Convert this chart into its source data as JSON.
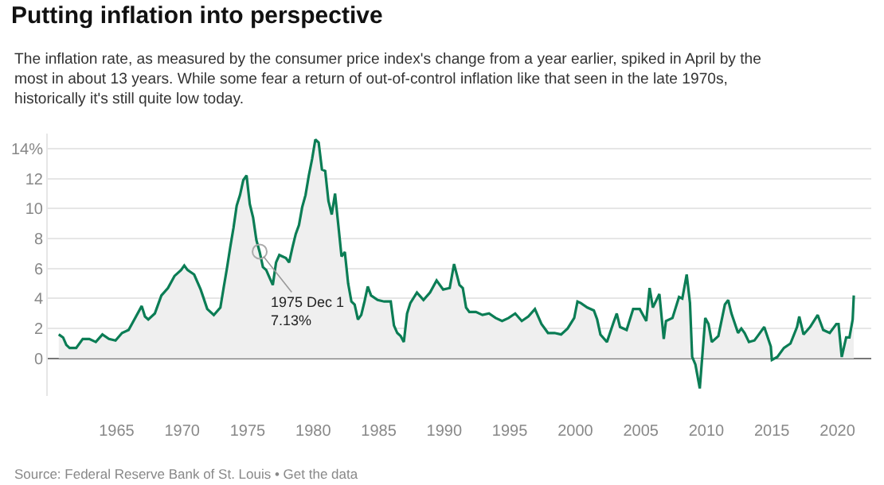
{
  "chart_data": {
    "type": "area",
    "title": "Putting inflation into perspective",
    "subtitle": "The inflation rate, as measured by the consumer price index's change from a year earlier, spiked in April by the most in about 13 years. While some fear a return of out-of-control inflation like that seen in the late 1970s, historically it's still quite low today.",
    "x": [
      "1960-08",
      "1960-12",
      "1961-03",
      "1961-06",
      "1961-12",
      "1962-06",
      "1962-12",
      "1963-06",
      "1963-12",
      "1964-06",
      "1964-12",
      "1965-06",
      "1965-12",
      "1966-06",
      "1966-12",
      "1967-03",
      "1967-06",
      "1967-12",
      "1968-06",
      "1968-12",
      "1969-06",
      "1969-12",
      "1970-03",
      "1970-06",
      "1970-12",
      "1971-06",
      "1971-12",
      "1972-06",
      "1972-12",
      "1973-03",
      "1973-06",
      "1973-09",
      "1973-12",
      "1974-03",
      "1974-06",
      "1974-09",
      "1974-12",
      "1975-03",
      "1975-06",
      "1975-09",
      "1975-12",
      "1976-03",
      "1976-06",
      "1976-09",
      "1976-12",
      "1977-03",
      "1977-06",
      "1977-12",
      "1978-03",
      "1978-06",
      "1978-09",
      "1978-12",
      "1979-03",
      "1979-06",
      "1979-09",
      "1979-12",
      "1980-03",
      "1980-06",
      "1980-09",
      "1980-12",
      "1981-03",
      "1981-06",
      "1981-09",
      "1981-12",
      "1982-03",
      "1982-06",
      "1982-09",
      "1982-12",
      "1983-03",
      "1983-06",
      "1983-09",
      "1983-12",
      "1984-03",
      "1984-06",
      "1984-12",
      "1985-06",
      "1985-12",
      "1986-03",
      "1986-06",
      "1986-09",
      "1986-12",
      "1987-03",
      "1987-06",
      "1987-12",
      "1988-06",
      "1988-12",
      "1989-06",
      "1989-12",
      "1990-06",
      "1990-10",
      "1991-03",
      "1991-06",
      "1991-09",
      "1991-12",
      "1992-06",
      "1992-12",
      "1993-06",
      "1993-12",
      "1994-06",
      "1994-12",
      "1995-06",
      "1995-12",
      "1996-06",
      "1996-12",
      "1997-06",
      "1997-12",
      "1998-06",
      "1998-12",
      "1999-06",
      "1999-12",
      "2000-03",
      "2000-06",
      "2000-12",
      "2001-06",
      "2001-09",
      "2001-12",
      "2002-06",
      "2002-12",
      "2003-03",
      "2003-06",
      "2003-12",
      "2004-06",
      "2004-12",
      "2005-06",
      "2005-09",
      "2005-12",
      "2006-06",
      "2006-10",
      "2006-12",
      "2007-06",
      "2007-12",
      "2008-03",
      "2008-07",
      "2008-10",
      "2008-12",
      "2009-03",
      "2009-07",
      "2009-12",
      "2010-03",
      "2010-06",
      "2010-12",
      "2011-06",
      "2011-09",
      "2011-12",
      "2012-06",
      "2012-09",
      "2012-12",
      "2013-04",
      "2013-09",
      "2013-12",
      "2014-06",
      "2014-12",
      "2015-01",
      "2015-06",
      "2015-12",
      "2016-06",
      "2016-12",
      "2017-02",
      "2017-06",
      "2017-12",
      "2018-07",
      "2018-12",
      "2019-06",
      "2019-12",
      "2020-02",
      "2020-05",
      "2020-09",
      "2020-12",
      "2021-03",
      "2021-04"
    ],
    "series": [
      {
        "color": "#0b7d55",
        "values": [
          1.6,
          1.4,
          0.9,
          0.7,
          0.7,
          1.3,
          1.3,
          1.1,
          1.6,
          1.3,
          1.2,
          1.7,
          1.9,
          2.7,
          3.5,
          2.8,
          2.6,
          3.0,
          4.2,
          4.7,
          5.5,
          5.9,
          6.2,
          5.9,
          5.6,
          4.6,
          3.3,
          2.9,
          3.4,
          4.7,
          6.0,
          7.4,
          8.7,
          10.2,
          10.9,
          11.9,
          12.2,
          10.3,
          9.4,
          7.9,
          7.1,
          6.1,
          5.9,
          5.4,
          4.9,
          6.4,
          6.9,
          6.7,
          6.4,
          7.4,
          8.3,
          8.9,
          10.1,
          10.9,
          12.2,
          13.3,
          14.6,
          14.4,
          12.6,
          12.5,
          10.5,
          9.6,
          11.0,
          8.9,
          6.8,
          7.1,
          5.0,
          3.8,
          3.6,
          2.6,
          2.9,
          3.8,
          4.8,
          4.2,
          3.9,
          3.8,
          3.8,
          2.2,
          1.7,
          1.5,
          1.1,
          3.0,
          3.7,
          4.4,
          3.9,
          4.4,
          5.2,
          4.6,
          4.7,
          6.3,
          4.9,
          4.7,
          3.4,
          3.1,
          3.1,
          2.9,
          3.0,
          2.7,
          2.5,
          2.7,
          3.0,
          2.5,
          2.8,
          3.3,
          2.3,
          1.7,
          1.7,
          1.6,
          2.0,
          2.7,
          3.8,
          3.7,
          3.4,
          3.2,
          2.6,
          1.6,
          1.1,
          2.4,
          3.0,
          2.1,
          1.9,
          3.3,
          3.3,
          2.5,
          4.7,
          3.4,
          4.3,
          1.3,
          2.5,
          2.7,
          4.1,
          4.0,
          5.6,
          3.7,
          0.1,
          -0.4,
          -2.0,
          2.7,
          2.3,
          1.1,
          1.5,
          3.6,
          3.9,
          3.0,
          1.7,
          2.0,
          1.7,
          1.1,
          1.2,
          1.5,
          2.1,
          0.8,
          -0.1,
          0.1,
          0.7,
          1.0,
          2.1,
          2.8,
          1.6,
          2.1,
          2.9,
          1.9,
          1.7,
          2.3,
          2.3,
          0.1,
          1.4,
          1.4,
          2.6,
          4.2
        ]
      }
    ],
    "xlim": [
      "1959-10",
      "2022-08"
    ],
    "xticks": [
      {
        "value": "1965-01",
        "label": "1965"
      },
      {
        "value": "1970-01",
        "label": "1970"
      },
      {
        "value": "1975-01",
        "label": "1975"
      },
      {
        "value": "1980-01",
        "label": "1980"
      },
      {
        "value": "1985-01",
        "label": "1985"
      },
      {
        "value": "1990-01",
        "label": "1990"
      },
      {
        "value": "1995-01",
        "label": "1995"
      },
      {
        "value": "2000-01",
        "label": "2000"
      },
      {
        "value": "2005-01",
        "label": "2005"
      },
      {
        "value": "2010-01",
        "label": "2010"
      },
      {
        "value": "2015-01",
        "label": "2015"
      },
      {
        "value": "2020-01",
        "label": "2020"
      }
    ],
    "ylim": [
      -2.5,
      15
    ],
    "yticks": [
      0,
      2,
      4,
      6,
      8,
      10,
      12,
      {
        "value": 14,
        "label": "14%"
      }
    ],
    "grid": "y",
    "annotations": [
      {
        "text": "1975 Dec 1\n7.13%",
        "x": "1975-12",
        "y": 7.13
      },
      "Source: Federal Reserve Bank of St. Louis • Get the data"
    ]
  }
}
